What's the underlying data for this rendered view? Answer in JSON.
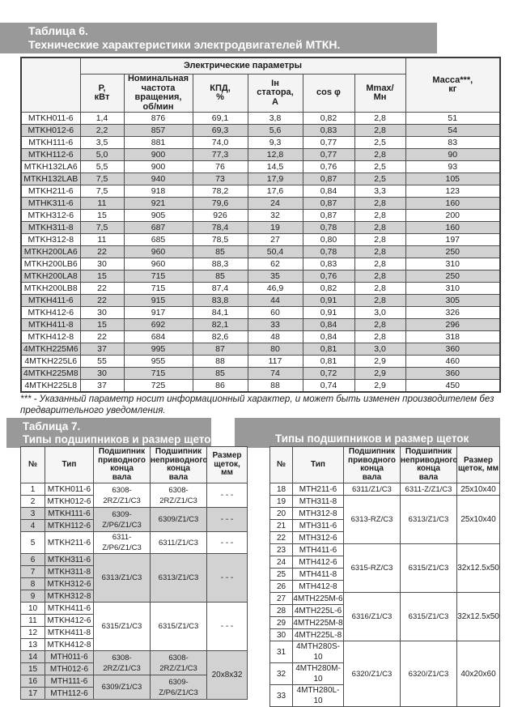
{
  "colors": {
    "banner_bg": "#999999",
    "banner_text": "#ffffff",
    "row_stripe": "#d2d2d2",
    "table_border": "#4d4d4d",
    "text": "#1c1c1c"
  },
  "table6_banner": {
    "line1": "Таблица 6.",
    "line2": "Технические характеристики электродвигателей МТКН."
  },
  "table6": {
    "group_header": "Электрические параметры",
    "columns": [
      "",
      "Р,\nкВт",
      "Номинальная\nчастота\nвращения,\nоб/мин",
      "КПД,\n%",
      "Iн\nстатора,\nА",
      "cos φ",
      "Mmax/\nМн",
      "Масса***,\nкг"
    ],
    "rows": [
      [
        "MTKH011-6",
        "1,4",
        "876",
        "69,1",
        "3,8",
        "0,82",
        "2,8",
        "51"
      ],
      [
        "MTKH012-6",
        "2,2",
        "857",
        "69,3",
        "5,6",
        "0,83",
        "2,8",
        "54"
      ],
      [
        "MTKH111-6",
        "3,5",
        "881",
        "74,0",
        "9,3",
        "0,77",
        "2,5",
        "83"
      ],
      [
        "MTKH112-6",
        "5,0",
        "900",
        "77,3",
        "12,8",
        "0,77",
        "2,8",
        "90"
      ],
      [
        "MTKH132LA6",
        "5,5",
        "900",
        "76",
        "14,5",
        "0,76",
        "2,5",
        "93"
      ],
      [
        "MTKH132LAB",
        "7,5",
        "940",
        "73",
        "17,9",
        "0,87",
        "2,5",
        "105"
      ],
      [
        "MTKH211-6",
        "7,5",
        "918",
        "78,2",
        "17,6",
        "0,84",
        "3,3",
        "123"
      ],
      [
        "MTHK311-6",
        "11",
        "921",
        "79,6",
        "24",
        "0,87",
        "2,8",
        "160"
      ],
      [
        "MTKH312-6",
        "15",
        "905",
        "926",
        "32",
        "0,87",
        "2,8",
        "200"
      ],
      [
        "MTKH311-8",
        "7,5",
        "687",
        "78,4",
        "19",
        "0,78",
        "2,8",
        "160"
      ],
      [
        "MTKH312-8",
        "11",
        "685",
        "78,5",
        "27",
        "0,80",
        "2,8",
        "197"
      ],
      [
        "MTKH200LA6",
        "22",
        "960",
        "85",
        "50,4",
        "0,78",
        "2,8",
        "250"
      ],
      [
        "MTKH200LB6",
        "30",
        "960",
        "88,3",
        "62",
        "0,83",
        "2,8",
        "310"
      ],
      [
        "MTKH200LA8",
        "15",
        "715",
        "85",
        "35",
        "0,76",
        "2,8",
        "250"
      ],
      [
        "MTKH200LB8",
        "22",
        "715",
        "87,4",
        "46,9",
        "0,82",
        "2,8",
        "310"
      ],
      [
        "MTKH411-6",
        "22",
        "915",
        "83,8",
        "44",
        "0,91",
        "2,8",
        "305"
      ],
      [
        "MTKH412-6",
        "30",
        "917",
        "84,1",
        "60",
        "0,91",
        "3,0",
        "326"
      ],
      [
        "MTKH411-8",
        "15",
        "692",
        "82,1",
        "33",
        "0,84",
        "2,8",
        "296"
      ],
      [
        "MTKH412-8",
        "22",
        "684",
        "82,6",
        "48",
        "0,84",
        "2,8",
        "318"
      ],
      [
        "4MTKH225M6",
        "37",
        "995",
        "87",
        "80",
        "0,81",
        "3,0",
        "360"
      ],
      [
        "4MTKH225L6",
        "55",
        "955",
        "88",
        "117",
        "0,81",
        "2,9",
        "460"
      ],
      [
        "4MTKH225M8",
        "30",
        "715",
        "85",
        "74",
        "0,72",
        "2,9",
        "360"
      ],
      [
        "4MTKH225L8",
        "37",
        "725",
        "86",
        "88",
        "0,74",
        "2,9",
        "450"
      ]
    ]
  },
  "footnote": "*** - Указанный параметр носит информационный характер, и может быть изменен производителем без предварительного уведомления.",
  "table7_left": {
    "banner_line1": "Таблица 7.",
    "banner_line2": "Типы подшипников и размер щеток",
    "columns": [
      "№",
      "Тип",
      "Подшипник\nприводного\nконца\nвала",
      "Подшипник\nнеприводного\nконца\nвала",
      "Размер\nщеток, мм"
    ],
    "rows": [
      {
        "n": "1",
        "t": "MTKH011-6",
        "d": [
          "6308-2RZ/Z1/C3",
          2
        ],
        "nd": [
          "6308-2RZ/Z1/C3",
          2
        ],
        "sz": [
          "- - -",
          2
        ],
        "sh": false
      },
      {
        "n": "2",
        "t": "MTKH012-6",
        "sh": false
      },
      {
        "n": "3",
        "t": "MTKH111-6",
        "d": [
          "6309-Z/P6/Z1/C3",
          2
        ],
        "nd": [
          "6309/Z1/C3",
          2
        ],
        "sz": [
          "- - -",
          2
        ],
        "sh": true
      },
      {
        "n": "4",
        "t": "MTKH112-6",
        "sh": true
      },
      {
        "n": "5",
        "t": "MTKH211-6",
        "d": [
          "6311-Z/P6/Z1/C3",
          1
        ],
        "nd": [
          "6311/Z1/C3",
          1
        ],
        "sz": [
          "- - -",
          1
        ],
        "sh": false
      },
      {
        "n": "6",
        "t": "MTKH311-6",
        "d": [
          "6313/Z1/C3",
          4
        ],
        "nd": [
          "6313/Z1/C3",
          4
        ],
        "sz": [
          "- - -",
          4
        ],
        "sh": true
      },
      {
        "n": "7",
        "t": "MTKH311-8",
        "sh": true
      },
      {
        "n": "8",
        "t": "MTKH312-6",
        "sh": true
      },
      {
        "n": "9",
        "t": "MTKH312-8",
        "sh": true
      },
      {
        "n": "10",
        "t": "MTKH411-6",
        "d": [
          "6315/Z1/C3",
          4
        ],
        "nd": [
          "6315/Z1/C3",
          4
        ],
        "sz": [
          "- - -",
          4
        ],
        "sh": false
      },
      {
        "n": "11",
        "t": "MTKH412-6",
        "sh": false
      },
      {
        "n": "12",
        "t": "MTKH411-8",
        "sh": false
      },
      {
        "n": "13",
        "t": "MTKH412-8",
        "sh": false
      },
      {
        "n": "14",
        "t": "MTH011-6",
        "d": [
          "6308-2RZ/Z1/C3",
          2
        ],
        "nd": [
          "6308-2RZ/Z1/C3",
          2
        ],
        "sz": [
          "20x8x32",
          4
        ],
        "sh": true
      },
      {
        "n": "15",
        "t": "MTH012-6",
        "sh": true
      },
      {
        "n": "16",
        "t": "MTH111-6",
        "d": [
          "6309/Z1/C3",
          2
        ],
        "nd": [
          "6309-Z/P6/Z1/C3",
          2
        ],
        "sh": true
      },
      {
        "n": "17",
        "t": "MTH112-6",
        "sh": true
      }
    ]
  },
  "table7_right": {
    "banner": "Типы подшипников и размер щеток",
    "columns": [
      "№",
      "Тип",
      "Подшипник\nприводного\nконца\nвала",
      "Подшипник\nнеприводного\nконца\nвала",
      "Размер\nщеток, мм"
    ],
    "rows": [
      {
        "n": "18",
        "t": "MTH211-6",
        "d": [
          "6311/Z1/C3",
          1
        ],
        "nd": [
          "6311-Z/Z1/C3",
          1
        ],
        "sz": [
          "25x10x40",
          1
        ],
        "sh": false
      },
      {
        "n": "19",
        "t": "MTH311-8",
        "d": [
          "6313-RZ/C3",
          4
        ],
        "nd": [
          "6313/Z1/C3",
          4
        ],
        "sz": [
          "25x10x40",
          4
        ],
        "sh": false
      },
      {
        "n": "20",
        "t": "MTH312-8",
        "sh": false
      },
      {
        "n": "21",
        "t": "MTH311-6",
        "sh": false
      },
      {
        "n": "22",
        "t": "MTH312-6",
        "sh": false
      },
      {
        "n": "23",
        "t": "MTH411-6",
        "d": [
          "6315-RZ/C3",
          4
        ],
        "nd": [
          "6315/Z1/C3",
          4
        ],
        "sz": [
          "32x12.5x50",
          4
        ],
        "sh": false
      },
      {
        "n": "24",
        "t": "MTH412-6",
        "sh": false
      },
      {
        "n": "25",
        "t": "MTH411-8",
        "sh": false
      },
      {
        "n": "26",
        "t": "MTH412-8",
        "sh": false
      },
      {
        "n": "27",
        "t": "4MTH225M-6",
        "d": [
          "6316/Z1/C3",
          4
        ],
        "nd": [
          "6315/Z1/C3",
          4
        ],
        "sz": [
          "32x12.5x50",
          4
        ],
        "sh": false
      },
      {
        "n": "28",
        "t": "4MTH225L-6",
        "sh": false
      },
      {
        "n": "29",
        "t": "4MTH225M-8",
        "sh": false
      },
      {
        "n": "30",
        "t": "4MTH225L-8",
        "sh": false
      },
      {
        "n": "31",
        "t": "4MTH280S-10",
        "d": [
          "6320/Z1/C3",
          3
        ],
        "nd": [
          "6320/Z1/C3",
          3
        ],
        "sz": [
          "40x20x60",
          3
        ],
        "sh": false
      },
      {
        "n": "32",
        "t": "4MTH280M-10",
        "sh": false
      },
      {
        "n": "33",
        "t": "4MTH280L-10",
        "sh": false
      }
    ]
  }
}
